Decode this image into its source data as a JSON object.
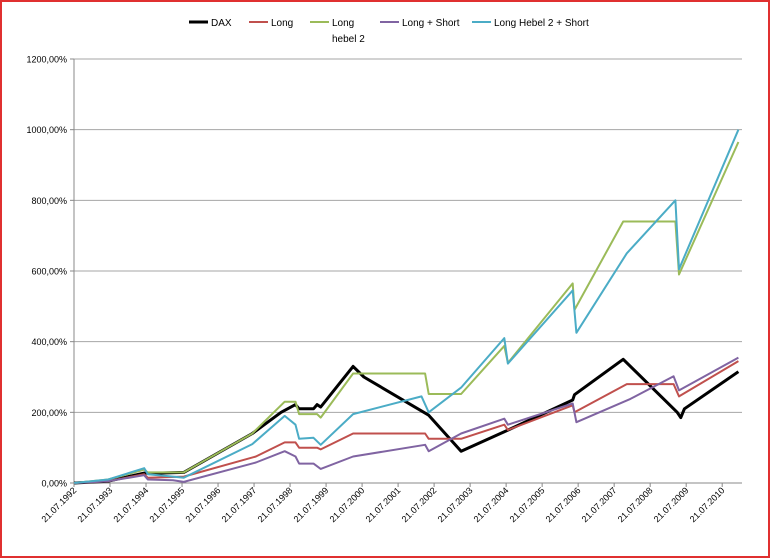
{
  "chart_data": {
    "type": "line",
    "y_ticks": [
      "0,00%",
      "200,00%",
      "400,00%",
      "600,00%",
      "800,00%",
      "1000,00%",
      "1200,00%"
    ],
    "y_tick_values": [
      0,
      200,
      400,
      600,
      800,
      1000,
      1200
    ],
    "ylim": [
      0,
      1200
    ],
    "x_ticks": [
      "21.07.1992",
      "21.07.1993",
      "21.07.1994",
      "21.07.1995",
      "21.07.1996",
      "21.07.1997",
      "21.07.1998",
      "21.07.1999",
      "21.07.2000",
      "21.07.2001",
      "21.07.2002",
      "21.07.2003",
      "21.07.2004",
      "21.07.2005",
      "21.07.2006",
      "21.07.2007",
      "21.07.2008",
      "21.07.2009",
      "21.07.2010"
    ],
    "xlim": [
      1992.55,
      2011.1
    ],
    "grid": "horizontal",
    "legend_position": "top",
    "series": [
      {
        "name": "DAX",
        "color": "#000000",
        "points": [
          [
            1992.55,
            0
          ],
          [
            1993.5,
            5
          ],
          [
            1994.5,
            28
          ],
          [
            1994.9,
            28
          ],
          [
            1995.6,
            30
          ],
          [
            1997.5,
            140
          ],
          [
            1998.3,
            200
          ],
          [
            1998.7,
            222
          ],
          [
            1998.8,
            210
          ],
          [
            1999.2,
            210
          ],
          [
            1999.3,
            222
          ],
          [
            1999.4,
            215
          ],
          [
            2000.3,
            330
          ],
          [
            2000.6,
            300
          ],
          [
            2002.4,
            192
          ],
          [
            2003.3,
            90
          ],
          [
            2004.5,
            145
          ],
          [
            2006.4,
            235
          ],
          [
            2006.45,
            250
          ],
          [
            2007.8,
            350
          ],
          [
            2009.3,
            200
          ],
          [
            2009.4,
            185
          ],
          [
            2009.5,
            210
          ],
          [
            2011.0,
            315
          ]
        ]
      },
      {
        "name": "Long",
        "color": "#c0504d",
        "points": [
          [
            1992.55,
            0
          ],
          [
            1993.5,
            5
          ],
          [
            1994.5,
            25
          ],
          [
            1994.6,
            15
          ],
          [
            1995.6,
            18
          ],
          [
            1997.6,
            75
          ],
          [
            1998.4,
            115
          ],
          [
            1998.7,
            115
          ],
          [
            1998.8,
            100
          ],
          [
            1999.3,
            100
          ],
          [
            1999.4,
            95
          ],
          [
            2000.3,
            140
          ],
          [
            2002.3,
            140
          ],
          [
            2002.4,
            125
          ],
          [
            2003.3,
            125
          ],
          [
            2004.5,
            165
          ],
          [
            2004.6,
            150
          ],
          [
            2006.4,
            220
          ],
          [
            2006.45,
            200
          ],
          [
            2007.9,
            280
          ],
          [
            2009.2,
            280
          ],
          [
            2009.35,
            245
          ],
          [
            2011.0,
            345
          ]
        ]
      },
      {
        "name": "Long\nhebel 2",
        "color": "#9bbb59",
        "points": [
          [
            1992.55,
            0
          ],
          [
            1993.5,
            10
          ],
          [
            1994.5,
            38
          ],
          [
            1994.6,
            30
          ],
          [
            1995.6,
            30
          ],
          [
            1997.5,
            140
          ],
          [
            1998.4,
            230
          ],
          [
            1998.7,
            230
          ],
          [
            1998.8,
            195
          ],
          [
            1999.3,
            195
          ],
          [
            1999.4,
            185
          ],
          [
            2000.3,
            310
          ],
          [
            2002.3,
            310
          ],
          [
            2002.4,
            252
          ],
          [
            2003.3,
            252
          ],
          [
            2004.5,
            388
          ],
          [
            2004.6,
            340
          ],
          [
            2006.4,
            565
          ],
          [
            2006.45,
            490
          ],
          [
            2007.8,
            740
          ],
          [
            2009.25,
            740
          ],
          [
            2009.35,
            590
          ],
          [
            2011.0,
            965
          ]
        ]
      },
      {
        "name": "Long + Short",
        "color": "#8064a2",
        "points": [
          [
            1992.55,
            0
          ],
          [
            1993.5,
            5
          ],
          [
            1994.5,
            22
          ],
          [
            1994.6,
            10
          ],
          [
            1995.3,
            8
          ],
          [
            1995.6,
            3
          ],
          [
            1997.6,
            58
          ],
          [
            1998.4,
            90
          ],
          [
            1998.7,
            75
          ],
          [
            1998.8,
            55
          ],
          [
            1999.2,
            55
          ],
          [
            1999.4,
            40
          ],
          [
            2000.3,
            75
          ],
          [
            2002.3,
            108
          ],
          [
            2002.4,
            90
          ],
          [
            2003.3,
            140
          ],
          [
            2004.5,
            182
          ],
          [
            2004.6,
            165
          ],
          [
            2006.4,
            225
          ],
          [
            2006.5,
            172
          ],
          [
            2008.0,
            238
          ],
          [
            2009.2,
            302
          ],
          [
            2009.35,
            262
          ],
          [
            2011.0,
            355
          ]
        ]
      },
      {
        "name": "Long Hebel 2 + Short",
        "color": "#4bacc6",
        "points": [
          [
            1992.55,
            0
          ],
          [
            1993.5,
            10
          ],
          [
            1994.5,
            42
          ],
          [
            1994.6,
            25
          ],
          [
            1995.3,
            18
          ],
          [
            1995.6,
            15
          ],
          [
            1997.5,
            110
          ],
          [
            1998.4,
            190
          ],
          [
            1998.7,
            165
          ],
          [
            1998.8,
            125
          ],
          [
            1999.2,
            128
          ],
          [
            1999.4,
            108
          ],
          [
            2000.3,
            195
          ],
          [
            2002.2,
            245
          ],
          [
            2002.4,
            200
          ],
          [
            2003.3,
            270
          ],
          [
            2004.5,
            410
          ],
          [
            2004.6,
            338
          ],
          [
            2006.4,
            545
          ],
          [
            2006.5,
            425
          ],
          [
            2007.9,
            650
          ],
          [
            2009.25,
            800
          ],
          [
            2009.35,
            605
          ],
          [
            2011.0,
            1000
          ]
        ]
      }
    ]
  }
}
